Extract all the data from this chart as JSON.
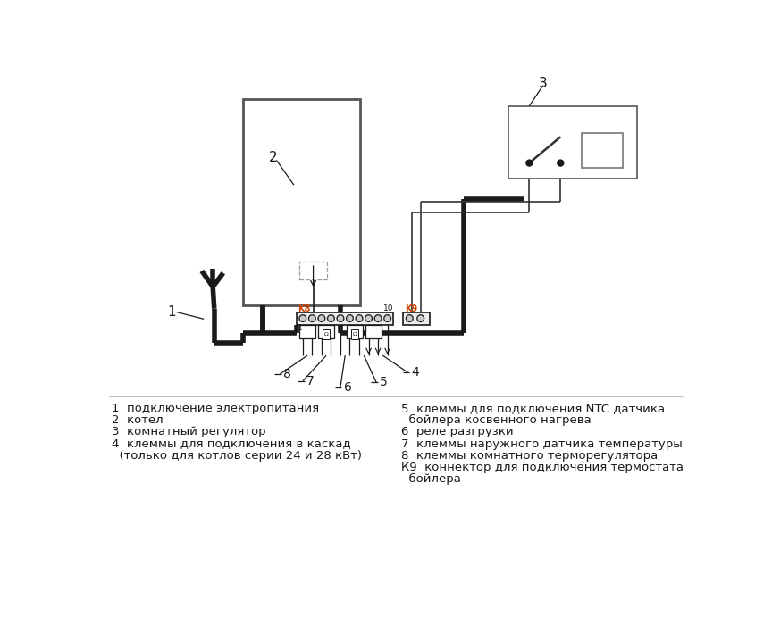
{
  "bg_color": "#ffffff",
  "black": "#1a1a1a",
  "dark": "#333333",
  "gray": "#666666",
  "blue": "#3355aa",
  "orange": "#cc4400",
  "textc": "#1a1a1a",
  "legend_left": [
    [
      "1",
      "  подключение электропитания"
    ],
    [
      "2",
      "  котел"
    ],
    [
      "3",
      "  комнатный регулятор"
    ],
    [
      "4",
      "  клеммы для подключения в каскад"
    ],
    [
      "",
      "  (только для котлов серии 24 и 28 кВт)"
    ]
  ],
  "legend_right": [
    [
      "5",
      "  клеммы для подключения NTC датчика"
    ],
    [
      "",
      "  бойлера косвенного нагрева"
    ],
    [
      "6",
      "  реле разгрузки"
    ],
    [
      "7",
      "  клеммы наружного датчика температуры"
    ],
    [
      "8",
      "  клеммы комнатного терморегулятора"
    ],
    [
      "К9",
      "  коннектор для подключения термостата"
    ],
    [
      "",
      "  бойлера"
    ]
  ]
}
